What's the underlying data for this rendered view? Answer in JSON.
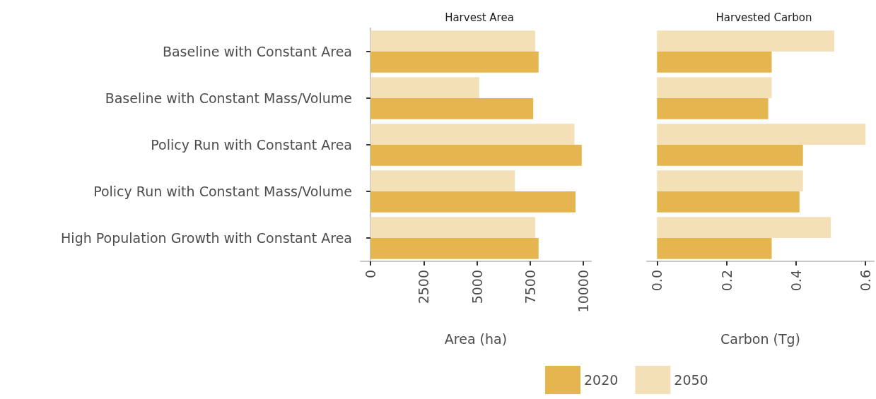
{
  "chart_data": [
    {
      "type": "bar",
      "orientation": "horizontal",
      "title": "Harvest Area",
      "xlabel": "Area (ha)",
      "categories": [
        "Baseline with Constant Area",
        "Baseline with Constant Mass/Volume",
        "Policy Run with Constant Area",
        "Policy Run with Constant Mass/Volume",
        "High Population Growth with Constant Area"
      ],
      "series": [
        {
          "name": "2020",
          "color": "#e5b54f",
          "values": [
            7900,
            7650,
            9930,
            9640,
            7900
          ]
        },
        {
          "name": "2050",
          "color": "#f3e0b7",
          "values": [
            7740,
            5110,
            9590,
            6790,
            7740
          ]
        }
      ],
      "xlim": [
        -470,
        10370
      ],
      "xticks": [
        0,
        2500,
        5000,
        7500,
        10000
      ],
      "grid": false,
      "legend": "bottom"
    },
    {
      "type": "bar",
      "orientation": "horizontal",
      "title": "Harvested Carbon",
      "xlabel": "Carbon (Tg)",
      "categories": [
        null,
        null,
        null,
        null,
        null
      ],
      "series": [
        {
          "color": "#e5b54f",
          "values": [
            0.33,
            0.32,
            0.42,
            0.41,
            0.33
          ]
        },
        {
          "color": "#f3e0b7",
          "values": [
            0.51,
            0.33,
            0.6,
            0.42,
            0.5
          ]
        }
      ],
      "xlim": [
        -0.029,
        0.624
      ],
      "xticks": [
        {
          "value": 0,
          "label": "0.0"
        },
        {
          "value": 0.2,
          "label": "0.2"
        },
        {
          "value": 0.4,
          "label": "0.4"
        },
        {
          "value": 0.6,
          "label": "0.6"
        }
      ],
      "grid": false,
      "tick_labels": "x"
    }
  ]
}
